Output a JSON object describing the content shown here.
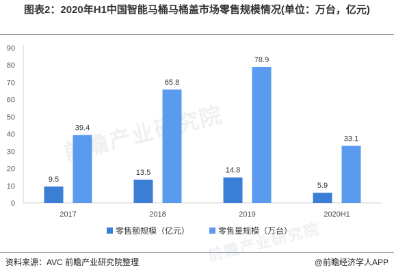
{
  "chart_data": {
    "type": "bar",
    "title": "图表2：2020年H1中国智能马桶马桶盖市场零售规模情况(单位：万台，亿元)",
    "categories": [
      "2017",
      "2018",
      "2019",
      "2020H1"
    ],
    "series": [
      {
        "name": "零售额规模（亿元）",
        "values": [
          9.5,
          13.5,
          14.8,
          5.9
        ],
        "color": "#3a7fd5"
      },
      {
        "name": "零售量规模（万台）",
        "values": [
          39.4,
          65.8,
          78.9,
          33.1
        ],
        "color": "#5b9bef"
      }
    ],
    "yticks": [
      0,
      10,
      20,
      30,
      40,
      50,
      60,
      70,
      80,
      90
    ],
    "ylim": [
      0,
      90
    ],
    "grid": false,
    "legend_position": "bottom"
  },
  "footer": {
    "source": "资料来源：AVC 前瞻产业研究院整理",
    "credit": "@前瞻经济学人APP"
  },
  "watermark": {
    "text": "前瞻产业研究院"
  }
}
